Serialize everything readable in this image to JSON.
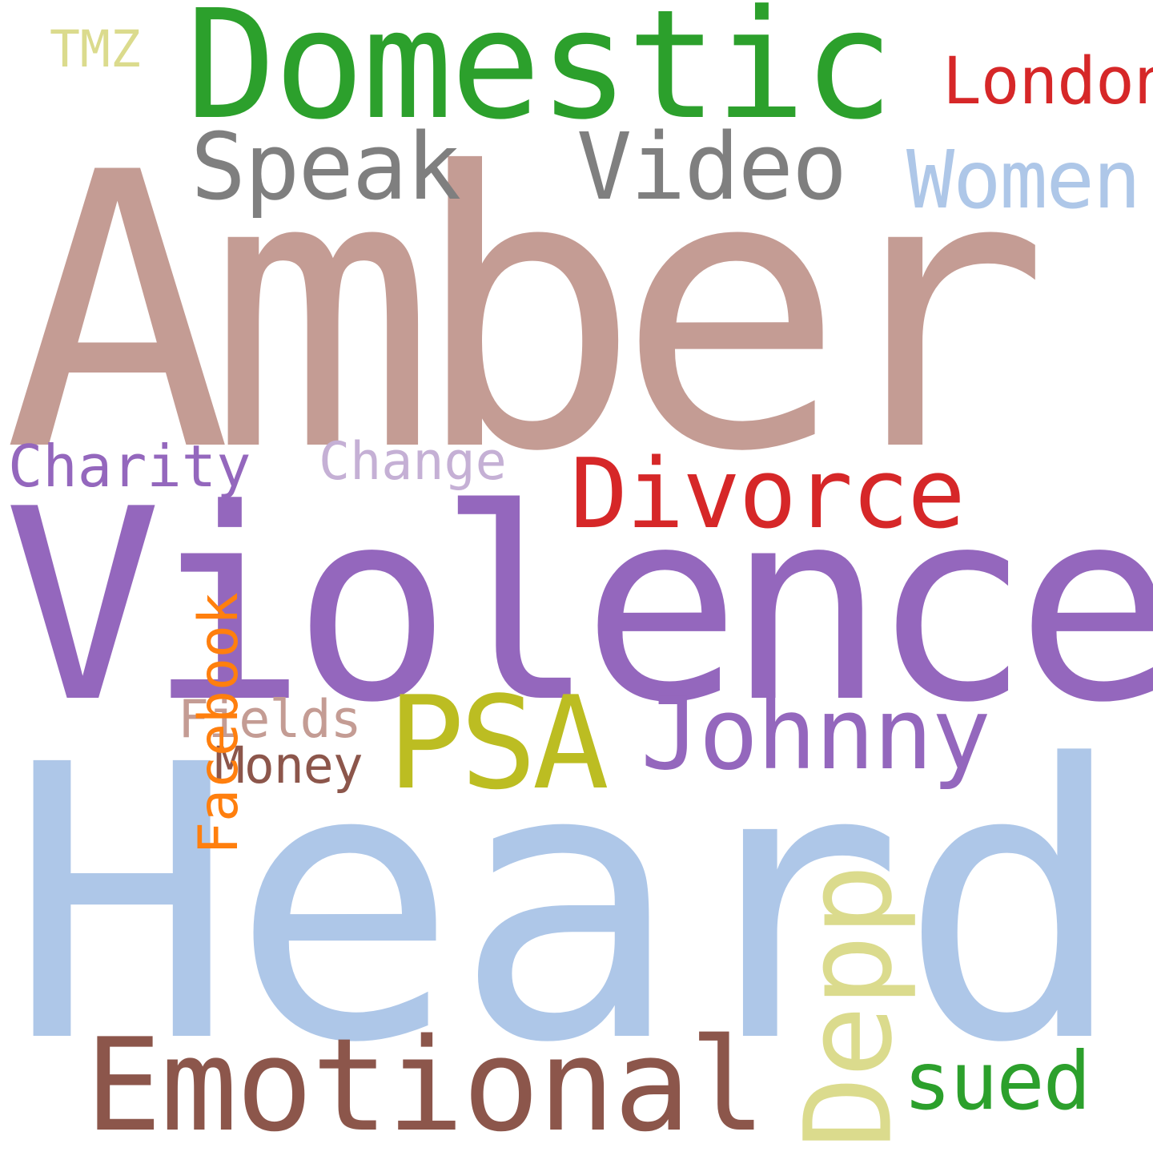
{
  "word_cloud": {
    "words": [
      {
        "text": "Amber",
        "color": "#c49c94"
      },
      {
        "text": "Violence",
        "color": "#9467bd"
      },
      {
        "text": "Heard",
        "color": "#aec7e8"
      },
      {
        "text": "Domestic",
        "color": "#2ca02c"
      },
      {
        "text": "Speak",
        "color": "#7f7f7f"
      },
      {
        "text": "Video",
        "color": "#7f7f7f"
      },
      {
        "text": "Women",
        "color": "#aec7e8"
      },
      {
        "text": "London",
        "color": "#d62728"
      },
      {
        "text": "TMZ",
        "color": "#dbdb8d"
      },
      {
        "text": "Charity",
        "color": "#9467bd"
      },
      {
        "text": "Change",
        "color": "#c5b0d5"
      },
      {
        "text": "Divorce",
        "color": "#d62728"
      },
      {
        "text": "PSA",
        "color": "#bcbd22"
      },
      {
        "text": "Johnny",
        "color": "#9467bd"
      },
      {
        "text": "Fields",
        "color": "#c49c94"
      },
      {
        "text": "Money",
        "color": "#8c564b"
      },
      {
        "text": "Facebook",
        "color": "#ff7f0e"
      },
      {
        "text": "Emotional",
        "color": "#8c564b"
      },
      {
        "text": "Depp",
        "color": "#dbdb8d"
      },
      {
        "text": "sued",
        "color": "#2ca02c"
      }
    ]
  }
}
